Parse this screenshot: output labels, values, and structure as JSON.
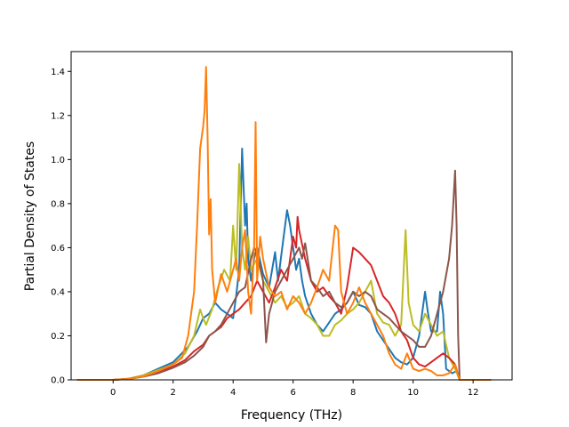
{
  "chart_data": {
    "type": "line",
    "title": "",
    "xlabel": "Frequency (THz)",
    "ylabel": "Partial Density of States",
    "xlim": [
      -1.4,
      13.3
    ],
    "ylim": [
      0.0,
      1.49
    ],
    "xticks": [
      0,
      2,
      4,
      6,
      8,
      10,
      12
    ],
    "xtick_labels": [
      "0",
      "2",
      "4",
      "6",
      "8",
      "10",
      "12"
    ],
    "yticks": [
      0.0,
      0.2,
      0.4,
      0.6,
      0.8,
      1.0,
      1.2,
      1.4
    ],
    "ytick_labels": [
      "0.0",
      "0.2",
      "0.4",
      "0.6",
      "0.8",
      "1.0",
      "1.2",
      "1.4"
    ],
    "grid": false,
    "legend": "none",
    "series": [
      {
        "color": "#1f77b4",
        "points": [
          [
            -1.2,
            0.0
          ],
          [
            0,
            0.0
          ],
          [
            0.5,
            0.005
          ],
          [
            1.0,
            0.02
          ],
          [
            1.5,
            0.05
          ],
          [
            2.0,
            0.08
          ],
          [
            2.5,
            0.15
          ],
          [
            2.8,
            0.22
          ],
          [
            3.0,
            0.28
          ],
          [
            3.2,
            0.3
          ],
          [
            3.4,
            0.35
          ],
          [
            3.6,
            0.32
          ],
          [
            3.8,
            0.3
          ],
          [
            4.0,
            0.28
          ],
          [
            4.1,
            0.38
          ],
          [
            4.2,
            0.5
          ],
          [
            4.3,
            1.05
          ],
          [
            4.4,
            0.7
          ],
          [
            4.45,
            0.8
          ],
          [
            4.5,
            0.55
          ],
          [
            4.6,
            0.45
          ],
          [
            4.7,
            0.55
          ],
          [
            4.8,
            0.6
          ],
          [
            5.0,
            0.48
          ],
          [
            5.2,
            0.42
          ],
          [
            5.4,
            0.58
          ],
          [
            5.5,
            0.45
          ],
          [
            5.6,
            0.56
          ],
          [
            5.8,
            0.77
          ],
          [
            5.9,
            0.7
          ],
          [
            6.0,
            0.6
          ],
          [
            6.1,
            0.5
          ],
          [
            6.2,
            0.55
          ],
          [
            6.3,
            0.45
          ],
          [
            6.4,
            0.38
          ],
          [
            6.6,
            0.3
          ],
          [
            6.8,
            0.25
          ],
          [
            7.0,
            0.22
          ],
          [
            7.2,
            0.26
          ],
          [
            7.4,
            0.3
          ],
          [
            7.6,
            0.32
          ],
          [
            7.8,
            0.35
          ],
          [
            8.0,
            0.4
          ],
          [
            8.2,
            0.34
          ],
          [
            8.4,
            0.33
          ],
          [
            8.6,
            0.3
          ],
          [
            8.8,
            0.22
          ],
          [
            9.0,
            0.18
          ],
          [
            9.2,
            0.14
          ],
          [
            9.4,
            0.1
          ],
          [
            9.6,
            0.08
          ],
          [
            9.8,
            0.07
          ],
          [
            10.0,
            0.1
          ],
          [
            10.2,
            0.2
          ],
          [
            10.4,
            0.4
          ],
          [
            10.5,
            0.3
          ],
          [
            10.6,
            0.22
          ],
          [
            10.8,
            0.22
          ],
          [
            10.9,
            0.4
          ],
          [
            11.0,
            0.3
          ],
          [
            11.1,
            0.05
          ],
          [
            11.3,
            0.03
          ],
          [
            11.45,
            0.04
          ],
          [
            11.55,
            0.0
          ],
          [
            12.6,
            0.0
          ]
        ]
      },
      {
        "color": "#bcbd22",
        "points": [
          [
            -1.2,
            0.0
          ],
          [
            0,
            0.0
          ],
          [
            0.5,
            0.005
          ],
          [
            1.0,
            0.02
          ],
          [
            1.5,
            0.045
          ],
          [
            2.0,
            0.07
          ],
          [
            2.4,
            0.12
          ],
          [
            2.7,
            0.2
          ],
          [
            2.9,
            0.32
          ],
          [
            3.0,
            0.28
          ],
          [
            3.1,
            0.25
          ],
          [
            3.3,
            0.32
          ],
          [
            3.5,
            0.42
          ],
          [
            3.7,
            0.5
          ],
          [
            3.9,
            0.45
          ],
          [
            4.0,
            0.7
          ],
          [
            4.1,
            0.5
          ],
          [
            4.2,
            0.98
          ],
          [
            4.3,
            0.6
          ],
          [
            4.4,
            0.5
          ],
          [
            4.5,
            0.65
          ],
          [
            4.6,
            0.5
          ],
          [
            4.8,
            0.55
          ],
          [
            5.0,
            0.45
          ],
          [
            5.2,
            0.4
          ],
          [
            5.4,
            0.35
          ],
          [
            5.6,
            0.38
          ],
          [
            5.8,
            0.33
          ],
          [
            6.0,
            0.35
          ],
          [
            6.2,
            0.38
          ],
          [
            6.4,
            0.3
          ],
          [
            6.6,
            0.28
          ],
          [
            6.8,
            0.25
          ],
          [
            7.0,
            0.2
          ],
          [
            7.2,
            0.2
          ],
          [
            7.4,
            0.25
          ],
          [
            7.6,
            0.27
          ],
          [
            7.8,
            0.3
          ],
          [
            8.0,
            0.32
          ],
          [
            8.2,
            0.35
          ],
          [
            8.4,
            0.4
          ],
          [
            8.6,
            0.45
          ],
          [
            8.8,
            0.3
          ],
          [
            9.0,
            0.26
          ],
          [
            9.2,
            0.25
          ],
          [
            9.4,
            0.2
          ],
          [
            9.6,
            0.25
          ],
          [
            9.75,
            0.68
          ],
          [
            9.85,
            0.35
          ],
          [
            10.0,
            0.25
          ],
          [
            10.2,
            0.22
          ],
          [
            10.4,
            0.3
          ],
          [
            10.6,
            0.25
          ],
          [
            10.8,
            0.2
          ],
          [
            11.0,
            0.22
          ],
          [
            11.2,
            0.1
          ],
          [
            11.4,
            0.05
          ],
          [
            11.55,
            0.0
          ],
          [
            12.6,
            0.0
          ]
        ]
      },
      {
        "color": "#d62728",
        "points": [
          [
            -1.2,
            0.0
          ],
          [
            0,
            0.0
          ],
          [
            0.5,
            0.004
          ],
          [
            1.0,
            0.015
          ],
          [
            1.5,
            0.035
          ],
          [
            2.0,
            0.06
          ],
          [
            2.4,
            0.09
          ],
          [
            2.7,
            0.13
          ],
          [
            3.0,
            0.16
          ],
          [
            3.2,
            0.2
          ],
          [
            3.4,
            0.22
          ],
          [
            3.6,
            0.24
          ],
          [
            3.8,
            0.28
          ],
          [
            4.0,
            0.3
          ],
          [
            4.2,
            0.32
          ],
          [
            4.4,
            0.35
          ],
          [
            4.6,
            0.38
          ],
          [
            4.8,
            0.45
          ],
          [
            5.0,
            0.4
          ],
          [
            5.2,
            0.35
          ],
          [
            5.4,
            0.42
          ],
          [
            5.6,
            0.5
          ],
          [
            5.8,
            0.45
          ],
          [
            5.9,
            0.55
          ],
          [
            6.0,
            0.65
          ],
          [
            6.1,
            0.6
          ],
          [
            6.15,
            0.74
          ],
          [
            6.2,
            0.68
          ],
          [
            6.4,
            0.55
          ],
          [
            6.6,
            0.45
          ],
          [
            6.8,
            0.4
          ],
          [
            7.0,
            0.42
          ],
          [
            7.2,
            0.38
          ],
          [
            7.4,
            0.35
          ],
          [
            7.6,
            0.3
          ],
          [
            7.8,
            0.42
          ],
          [
            8.0,
            0.6
          ],
          [
            8.2,
            0.58
          ],
          [
            8.4,
            0.55
          ],
          [
            8.6,
            0.52
          ],
          [
            8.8,
            0.45
          ],
          [
            9.0,
            0.38
          ],
          [
            9.2,
            0.35
          ],
          [
            9.4,
            0.3
          ],
          [
            9.6,
            0.22
          ],
          [
            9.8,
            0.18
          ],
          [
            10.0,
            0.1
          ],
          [
            10.2,
            0.07
          ],
          [
            10.4,
            0.06
          ],
          [
            10.6,
            0.08
          ],
          [
            10.8,
            0.1
          ],
          [
            11.0,
            0.12
          ],
          [
            11.2,
            0.1
          ],
          [
            11.4,
            0.07
          ],
          [
            11.55,
            0.0
          ],
          [
            12.6,
            0.0
          ]
        ]
      },
      {
        "color": "#8c564b",
        "points": [
          [
            -1.2,
            0.0
          ],
          [
            0,
            0.0
          ],
          [
            0.5,
            0.004
          ],
          [
            1.0,
            0.014
          ],
          [
            1.5,
            0.03
          ],
          [
            2.0,
            0.055
          ],
          [
            2.4,
            0.08
          ],
          [
            2.7,
            0.11
          ],
          [
            3.0,
            0.15
          ],
          [
            3.2,
            0.2
          ],
          [
            3.4,
            0.22
          ],
          [
            3.6,
            0.25
          ],
          [
            3.8,
            0.3
          ],
          [
            4.0,
            0.35
          ],
          [
            4.2,
            0.4
          ],
          [
            4.4,
            0.42
          ],
          [
            4.6,
            0.55
          ],
          [
            4.7,
            0.6
          ],
          [
            4.8,
            0.58
          ],
          [
            5.0,
            0.45
          ],
          [
            5.1,
            0.17
          ],
          [
            5.2,
            0.3
          ],
          [
            5.4,
            0.4
          ],
          [
            5.6,
            0.45
          ],
          [
            5.8,
            0.5
          ],
          [
            6.0,
            0.55
          ],
          [
            6.2,
            0.6
          ],
          [
            6.3,
            0.55
          ],
          [
            6.4,
            0.62
          ],
          [
            6.6,
            0.45
          ],
          [
            6.8,
            0.42
          ],
          [
            7.0,
            0.38
          ],
          [
            7.2,
            0.4
          ],
          [
            7.4,
            0.35
          ],
          [
            7.6,
            0.33
          ],
          [
            7.8,
            0.35
          ],
          [
            8.0,
            0.4
          ],
          [
            8.2,
            0.38
          ],
          [
            8.4,
            0.4
          ],
          [
            8.6,
            0.38
          ],
          [
            8.8,
            0.32
          ],
          [
            9.0,
            0.3
          ],
          [
            9.2,
            0.28
          ],
          [
            9.4,
            0.25
          ],
          [
            9.6,
            0.22
          ],
          [
            9.8,
            0.2
          ],
          [
            10.0,
            0.18
          ],
          [
            10.2,
            0.15
          ],
          [
            10.4,
            0.15
          ],
          [
            10.6,
            0.2
          ],
          [
            10.8,
            0.3
          ],
          [
            11.0,
            0.4
          ],
          [
            11.2,
            0.55
          ],
          [
            11.3,
            0.7
          ],
          [
            11.4,
            0.95
          ],
          [
            11.45,
            0.7
          ],
          [
            11.5,
            0.2
          ],
          [
            11.55,
            0.0
          ],
          [
            12.6,
            0.0
          ]
        ]
      },
      {
        "color": "#ff7f0e",
        "points": [
          [
            -1.2,
            0.0
          ],
          [
            0,
            0.0
          ],
          [
            0.5,
            0.004
          ],
          [
            1.0,
            0.015
          ],
          [
            1.5,
            0.04
          ],
          [
            2.0,
            0.07
          ],
          [
            2.3,
            0.1
          ],
          [
            2.5,
            0.2
          ],
          [
            2.7,
            0.4
          ],
          [
            2.8,
            0.7
          ],
          [
            2.9,
            1.05
          ],
          [
            3.0,
            1.15
          ],
          [
            3.05,
            1.22
          ],
          [
            3.1,
            1.42
          ],
          [
            3.15,
            1.1
          ],
          [
            3.2,
            0.66
          ],
          [
            3.25,
            0.82
          ],
          [
            3.3,
            0.5
          ],
          [
            3.4,
            0.35
          ],
          [
            3.6,
            0.48
          ],
          [
            3.8,
            0.4
          ],
          [
            4.0,
            0.5
          ],
          [
            4.1,
            0.55
          ],
          [
            4.2,
            0.45
          ],
          [
            4.3,
            0.6
          ],
          [
            4.4,
            0.68
          ],
          [
            4.5,
            0.4
          ],
          [
            4.6,
            0.3
          ],
          [
            4.7,
            0.6
          ],
          [
            4.75,
            1.17
          ],
          [
            4.8,
            0.45
          ],
          [
            4.9,
            0.65
          ],
          [
            5.0,
            0.55
          ],
          [
            5.2,
            0.42
          ],
          [
            5.4,
            0.38
          ],
          [
            5.6,
            0.4
          ],
          [
            5.8,
            0.32
          ],
          [
            6.0,
            0.38
          ],
          [
            6.2,
            0.35
          ],
          [
            6.4,
            0.3
          ],
          [
            6.6,
            0.35
          ],
          [
            6.8,
            0.42
          ],
          [
            7.0,
            0.5
          ],
          [
            7.2,
            0.45
          ],
          [
            7.4,
            0.7
          ],
          [
            7.5,
            0.68
          ],
          [
            7.6,
            0.4
          ],
          [
            7.8,
            0.3
          ],
          [
            8.0,
            0.35
          ],
          [
            8.2,
            0.42
          ],
          [
            8.4,
            0.35
          ],
          [
            8.6,
            0.3
          ],
          [
            8.8,
            0.25
          ],
          [
            9.0,
            0.2
          ],
          [
            9.2,
            0.12
          ],
          [
            9.4,
            0.07
          ],
          [
            9.6,
            0.05
          ],
          [
            9.8,
            0.12
          ],
          [
            10.0,
            0.05
          ],
          [
            10.2,
            0.04
          ],
          [
            10.4,
            0.05
          ],
          [
            10.6,
            0.04
          ],
          [
            10.8,
            0.02
          ],
          [
            11.0,
            0.02
          ],
          [
            11.2,
            0.03
          ],
          [
            11.4,
            0.07
          ],
          [
            11.5,
            0.02
          ],
          [
            11.55,
            0.0
          ],
          [
            12.6,
            0.0
          ]
        ]
      }
    ]
  }
}
